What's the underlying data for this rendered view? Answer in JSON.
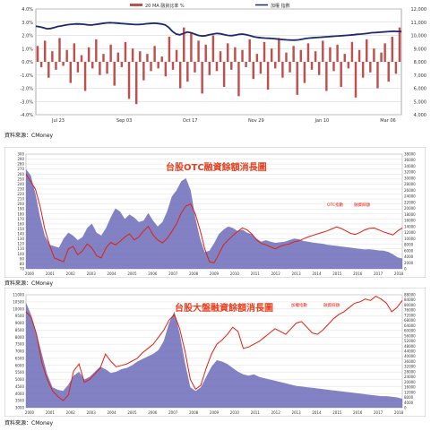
{
  "charts": [
    {
      "legend_a": "20 MA 融資比率 %",
      "legend_b": "加權 指數",
      "source": "資料來源：CMoney",
      "colors": {
        "bar": "#c0504d",
        "line": "#1f2a6b",
        "frame": "#888888"
      }
    },
    {
      "title": "台股OTC融資餘額消長圖",
      "legend_a": "OTC指數",
      "legend_b": "融資餘額",
      "source": "資料來源：CMoney",
      "colors": {
        "area": "#6b6bb8",
        "line": "#e02010",
        "frame": "#999999",
        "bg": "#dcdcec"
      }
    },
    {
      "title": "台股大盤融資餘額消長圖",
      "legend_a": "加權指數",
      "legend_b": "融資餘額",
      "source": "資料來源：CMoney",
      "colors": {
        "area": "#6b6bb8",
        "line": "#e02010",
        "frame": "#999999",
        "bg": "#dcdcec"
      }
    }
  ],
  "chart_data": [
    {
      "type": "bar",
      "x_ticks": [
        "Jul 23",
        "Sep 03",
        "Oct 17",
        "Nov 29",
        "Jan 10",
        "Mar 06"
      ],
      "y_left": {
        "ticks": [
          "4.0%",
          "3.0%",
          "2.0%",
          "1.0%",
          "0.0%",
          "-1.0%",
          "-2.0%",
          "-3.0%",
          "-4.0%"
        ],
        "range": [
          -4,
          4
        ]
      },
      "y_right": {
        "ticks": [
          "12,000",
          "11,000",
          "10,000",
          "9,000",
          "8,000",
          "7,000",
          "6,000",
          "5,000",
          "4,000"
        ],
        "range": [
          4000,
          12000
        ]
      },
      "series": [
        {
          "name": "20 MA 融資比率 %",
          "type": "bar",
          "values": [
            1.2,
            -0.4,
            1.6,
            -1.2,
            0.8,
            -0.6,
            1.8,
            -0.3,
            0.9,
            -1.6,
            1.4,
            -0.8,
            0.5,
            -2.2,
            1.1,
            -0.5,
            1.7,
            -1.0,
            0.6,
            -0.9,
            1.3,
            -1.8,
            0.7,
            -0.4,
            1.5,
            -2.8,
            1.0,
            -3.2,
            0.8,
            -1.4,
            0.6,
            -0.7,
            1.2,
            -0.5,
            0.4,
            -1.1,
            1.9,
            -0.6,
            0.9,
            -2.0,
            2.6,
            -1.5,
            2.2,
            -0.8,
            1.6,
            -2.4,
            1.3,
            -1.0,
            2.0,
            -0.7,
            0.8,
            -1.9,
            1.4,
            -0.6,
            1.1,
            -2.6,
            0.9,
            -0.4,
            1.7,
            -1.3,
            0.6,
            -0.9,
            1.5,
            -2.1,
            1.0,
            -0.5,
            1.8,
            -1.2,
            0.7,
            -0.8,
            1.2,
            -2.5,
            0.9,
            -1.6,
            1.4,
            -0.6,
            0.8,
            -1.0,
            1.6,
            -2.2,
            1.1,
            -0.7,
            1.3,
            -1.9,
            0.6,
            -0.5,
            1.5,
            -2.7,
            0.9,
            -1.2,
            1.7,
            -0.8,
            1.0,
            -2.0,
            0.7,
            1.4,
            -1.5,
            1.9,
            -0.9,
            2.6
          ]
        },
        {
          "name": "加權 指數",
          "type": "line",
          "values": [
            10700,
            10650,
            10580,
            10500,
            10520,
            10600,
            10680,
            10720,
            10780,
            10820,
            10850,
            10870,
            10860,
            10840,
            10800,
            10780,
            10820,
            10860,
            10900,
            10940,
            10960,
            10950,
            10930,
            10900,
            10880,
            10860,
            10840,
            10820,
            10830,
            10850,
            10880,
            10900,
            10920,
            10900,
            10860,
            10800,
            10600,
            10300,
            10100,
            10050,
            10150,
            10250,
            10200,
            10100,
            10000,
            9950,
            9980,
            10050,
            10100,
            10150,
            10120,
            10060,
            10000,
            9980,
            10020,
            10080,
            10100,
            10050,
            9980,
            9900,
            9850,
            9820,
            9800,
            9780,
            9760,
            9740,
            9700,
            9680,
            9660,
            9650,
            9640,
            9660,
            9700,
            9760,
            9800,
            9820,
            9840,
            9860,
            9880,
            9900,
            9920,
            9940,
            9960,
            9980,
            10000,
            10020,
            10050,
            10080,
            10100,
            10130,
            10160,
            10200,
            10220,
            10240,
            10260,
            10280,
            10300,
            10310,
            10300,
            10290
          ]
        }
      ],
      "ylim": [
        -4,
        4
      ]
    },
    {
      "type": "area",
      "x_ticks": [
        "2000",
        "2001",
        "2002",
        "2003",
        "2004",
        "2005",
        "2006",
        "2007",
        "2008",
        "2009",
        "2010",
        "2011",
        "2012",
        "2013",
        "2014",
        "2015",
        "2016",
        "2017",
        "2018"
      ],
      "y_left": {
        "ticks": [
          "300",
          "290",
          "280",
          "270",
          "260",
          "250",
          "240",
          "230",
          "220",
          "210",
          "200",
          "190",
          "180",
          "170",
          "160",
          "150",
          "140",
          "130",
          "120",
          "110",
          "100",
          "90",
          "80",
          "70"
        ],
        "range": [
          70,
          300
        ]
      },
      "y_right": {
        "ticks": [
          "38000",
          "36000",
          "34000",
          "32000",
          "30000",
          "28000",
          "26000",
          "24000",
          "22000",
          "20000",
          "18000",
          "16000",
          "14000",
          "12000",
          "10000",
          "8000",
          "6000",
          "4000",
          "2000",
          "0"
        ],
        "range": [
          0,
          38000
        ]
      },
      "series": [
        {
          "name": "OTC指數",
          "type": "line",
          "values": [
            260,
            245,
            230,
            195,
            150,
            118,
            92,
            88,
            84,
            110,
            115,
            98,
            106,
            120,
            112,
            96,
            92,
            112,
            123,
            118,
            125,
            134,
            140,
            128,
            134,
            146,
            155,
            138,
            128,
            122,
            131,
            145,
            160,
            182,
            196,
            200,
            180,
            148,
            110,
            84,
            82,
            100,
            118,
            128,
            137,
            145,
            152,
            148,
            140,
            128,
            121,
            118,
            114,
            110,
            115,
            118,
            120,
            124,
            126,
            130,
            134,
            137,
            140,
            143,
            146,
            150,
            154,
            151,
            146,
            141,
            139,
            143,
            148,
            151,
            152,
            148,
            144,
            141,
            138,
            146,
            152
          ]
        },
        {
          "name": "融資餘額",
          "type": "area",
          "values": [
            33000,
            31000,
            25000,
            17000,
            11000,
            8000,
            7500,
            7000,
            10000,
            12000,
            11000,
            9500,
            10500,
            13500,
            15000,
            12000,
            11000,
            13500,
            17000,
            20000,
            19000,
            16500,
            18000,
            17000,
            15500,
            16000,
            18500,
            16000,
            14000,
            15500,
            19000,
            24000,
            26000,
            29000,
            30000,
            26000,
            17000,
            10000,
            5500,
            6000,
            8500,
            11500,
            13000,
            14000,
            13500,
            12500,
            13000,
            12000,
            11500,
            10000,
            9000,
            9500,
            9000,
            8600,
            8800,
            9000,
            9500,
            10000,
            9800,
            9200,
            9000,
            8700,
            8500,
            8300,
            8000,
            7800,
            7600,
            7400,
            7200,
            7000,
            6800,
            6600,
            6400,
            6500,
            6300,
            6100,
            6000,
            5600,
            4800,
            3800,
            3400
          ]
        }
      ]
    },
    {
      "type": "area",
      "x_ticks": [
        "2000",
        "2001",
        "2002",
        "2003",
        "2004",
        "2005",
        "2006",
        "2007",
        "2008",
        "2009",
        "2010",
        "2011",
        "2012",
        "2013",
        "2014",
        "2015",
        "2016",
        "2017",
        "2018"
      ],
      "y_left": {
        "ticks": [
          "11000",
          "10500",
          "10000",
          "9500",
          "9000",
          "8500",
          "8000",
          "7500",
          "7000",
          "6500",
          "6000",
          "5500",
          "5000",
          "4500",
          "4000",
          "3500",
          "3000"
        ],
        "range": [
          3000,
          11000
        ]
      },
      "y_right": {
        "ticks": [
          "88000",
          "84000",
          "80000",
          "76000",
          "72000",
          "68000",
          "64000",
          "60000",
          "56000",
          "52000",
          "48000",
          "44000",
          "40000",
          "36000",
          "32000",
          "28000",
          "24000",
          "20000",
          "16000",
          "12000",
          "8000",
          "4000",
          "0"
        ],
        "range": [
          0,
          88000
        ]
      },
      "series": [
        {
          "name": "加權指數",
          "type": "line",
          "values": [
            9800,
            9400,
            8200,
            6200,
            5000,
            4200,
            3800,
            3500,
            3900,
            5600,
            6100,
            4800,
            5000,
            5400,
            5800,
            6800,
            6300,
            5900,
            6000,
            6100,
            6300,
            6500,
            6900,
            7200,
            7500,
            8000,
            8500,
            9200,
            9600,
            8600,
            7000,
            5000,
            4300,
            4600,
            5800,
            6800,
            7500,
            7800,
            8200,
            8700,
            8400,
            7200,
            7300,
            7500,
            7700,
            8000,
            8300,
            8600,
            8400,
            8200,
            8600,
            9000,
            9100,
            8700,
            8300,
            8200,
            8500,
            8900,
            9300,
            9600,
            9800,
            10100,
            10400,
            10500,
            10700,
            10600,
            10900,
            10700,
            10400,
            9800,
            10100,
            10600
          ]
        },
        {
          "name": "融資餘額",
          "type": "area",
          "values": [
            82000,
            72000,
            58000,
            42000,
            26000,
            16000,
            14000,
            13000,
            18000,
            25000,
            28000,
            22000,
            24000,
            28000,
            32000,
            30000,
            27000,
            28000,
            30000,
            31000,
            33000,
            36000,
            38000,
            40000,
            42000,
            45000,
            52000,
            66000,
            75000,
            58000,
            35000,
            16000,
            13000,
            16000,
            24000,
            32000,
            37000,
            36000,
            34000,
            31000,
            28000,
            26000,
            25000,
            26000,
            24000,
            23000,
            22000,
            21000,
            20000,
            19000,
            18000,
            17000,
            16500,
            16000,
            15500,
            15000,
            14500,
            14000,
            13500,
            13000,
            12500,
            12000,
            11500,
            11000,
            10500,
            10000,
            9500,
            9000,
            9000,
            8500,
            8000,
            7000
          ]
        }
      ]
    }
  ]
}
